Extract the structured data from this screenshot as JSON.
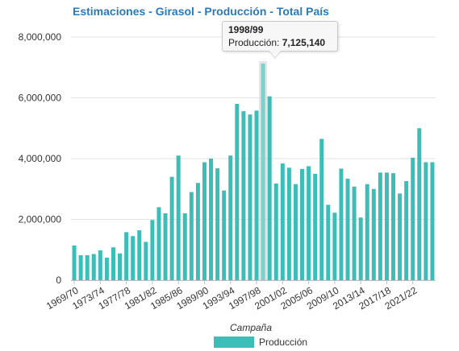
{
  "chart_data": {
    "type": "bar",
    "title": "Estimaciones - Girasol - Producción - Total País",
    "xlabel": "Campaña",
    "ylabel": "",
    "ylim": [
      0,
      8000000
    ],
    "yticks": [
      "8,000,000",
      "6,000,000",
      "4,000,000",
      "2,000,000",
      "0"
    ],
    "ytick_values": [
      8000000,
      6000000,
      4000000,
      2000000,
      0
    ],
    "grid": true,
    "legend_position": "bottom",
    "categories": [
      "1969/70",
      "1970/71",
      "1971/72",
      "1972/73",
      "1973/74",
      "1974/75",
      "1975/76",
      "1976/77",
      "1977/78",
      "1978/79",
      "1979/80",
      "1980/81",
      "1981/82",
      "1982/83",
      "1983/84",
      "1984/85",
      "1985/86",
      "1986/87",
      "1987/88",
      "1988/89",
      "1989/90",
      "1990/91",
      "1991/92",
      "1992/93",
      "1993/94",
      "1994/95",
      "1995/96",
      "1996/97",
      "1997/98",
      "1998/99",
      "1999/00",
      "2000/01",
      "2001/02",
      "2002/03",
      "2003/04",
      "2004/05",
      "2005/06",
      "2006/07",
      "2007/08",
      "2008/09",
      "2009/10",
      "2010/11",
      "2011/12",
      "2012/13",
      "2013/14",
      "2014/15",
      "2015/16",
      "2016/17",
      "2017/18",
      "2018/19",
      "2019/20",
      "2020/21",
      "2021/22",
      "2022/23",
      "2023/24",
      "2024/25"
    ],
    "tick_labels": [
      "1969/70",
      "1973/74",
      "1977/78",
      "1981/82",
      "1985/86",
      "1989/90",
      "1993/94",
      "1997/98",
      "2001/02",
      "2005/06",
      "2009/10",
      "2013/14",
      "2017/18",
      "2021/22"
    ],
    "series": [
      {
        "name": "Producción",
        "color": "#3dbdb7",
        "values": [
          1140000,
          820000,
          820000,
          860000,
          980000,
          740000,
          1080000,
          880000,
          1580000,
          1450000,
          1640000,
          1260000,
          1980000,
          2400000,
          2200000,
          3400000,
          4100000,
          2200000,
          2900000,
          3200000,
          3880000,
          4000000,
          3680000,
          2950000,
          4100000,
          5800000,
          5560000,
          5450000,
          5580000,
          7125140,
          6050000,
          3180000,
          3840000,
          3700000,
          3160000,
          3660000,
          3750000,
          3500000,
          4650000,
          2480000,
          2220000,
          3670000,
          3340000,
          3080000,
          2060000,
          3160000,
          3000000,
          3540000,
          3540000,
          3520000,
          2850000,
          3260000,
          4030000,
          5000000,
          3880000,
          3880000
        ]
      }
    ]
  },
  "tooltip": {
    "category": "1998/99",
    "label": "Producción:",
    "value": "7,125,140"
  }
}
